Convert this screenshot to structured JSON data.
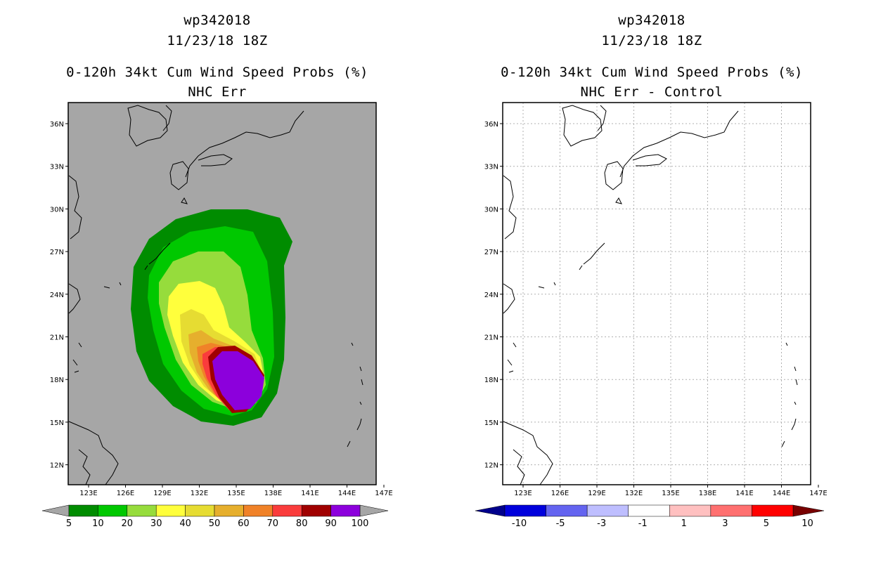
{
  "storm_id": "wp342018",
  "valid_time": "11/23/18 18Z",
  "panels": [
    {
      "title_line1": "wp342018",
      "title_line2": "11/23/18 18Z",
      "title_line3": "0-120h 34kt Cum Wind Speed Probs (%)",
      "title_line4": "NHC Err",
      "background_color": "#a6a6a6"
    },
    {
      "title_line1": "wp342018",
      "title_line2": "11/23/18 18Z",
      "title_line3": "0-120h 34kt Cum Wind Speed Probs (%)",
      "title_line4": "NHC Err - Control",
      "background_color": "#ffffff"
    }
  ],
  "axes": {
    "lon_labels": [
      "123E",
      "126E",
      "129E",
      "132E",
      "135E",
      "138E",
      "141E",
      "144E",
      "147E"
    ],
    "lat_labels": [
      "36N",
      "33N",
      "30N",
      "27N",
      "24N",
      "21N",
      "18N",
      "15N",
      "12N"
    ]
  },
  "colorbar_left": {
    "labels": [
      "5",
      "10",
      "20",
      "30",
      "40",
      "50",
      "60",
      "70",
      "80",
      "90",
      "100"
    ],
    "colors": [
      "#008c00",
      "#00c800",
      "#96dc3c",
      "#ffff3c",
      "#e6dc32",
      "#e6af2d",
      "#f08228",
      "#fa3c3c",
      "#a00000",
      "#8c00dc"
    ],
    "end_color": "#a6a6a6"
  },
  "colorbar_right": {
    "labels": [
      "-10",
      "-5",
      "-3",
      "-1",
      "1",
      "3",
      "5",
      "10"
    ],
    "colors": [
      "#0000dc",
      "#6464f0",
      "#bebeff",
      "#ffffff",
      "#ffc0c0",
      "#ff7070",
      "#ff0000"
    ],
    "low_end_color": "#00008c",
    "high_end_color": "#780000"
  }
}
